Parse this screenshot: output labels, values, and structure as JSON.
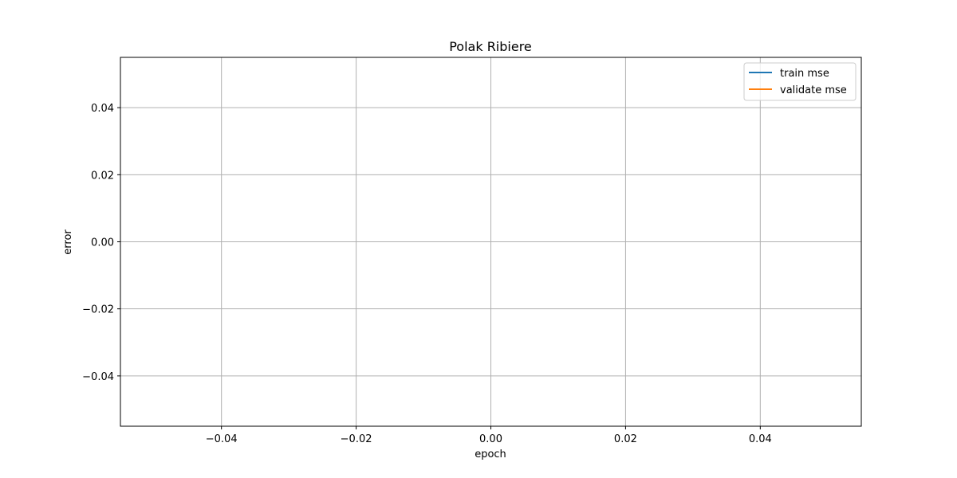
{
  "chart_data": {
    "type": "line",
    "title": "Polak Ribiere",
    "xlabel": "epoch",
    "ylabel": "error",
    "xlim": [
      -0.055,
      0.055
    ],
    "ylim": [
      -0.055,
      0.055
    ],
    "x_ticks": [
      -0.04,
      -0.02,
      0.0,
      0.02,
      0.04
    ],
    "y_ticks": [
      -0.04,
      -0.02,
      0.0,
      0.02,
      0.04
    ],
    "x_tick_labels": [
      "−0.04",
      "−0.02",
      "0.00",
      "0.02",
      "0.04"
    ],
    "y_tick_labels": [
      "−0.04",
      "−0.02",
      "0.00",
      "0.02",
      "0.04"
    ],
    "grid": true,
    "legend_position": "top-right",
    "series": [
      {
        "name": "train mse",
        "color": "#1f77b4",
        "x": [],
        "y": []
      },
      {
        "name": "validate mse",
        "color": "#ff7f0e",
        "x": [],
        "y": []
      }
    ]
  }
}
